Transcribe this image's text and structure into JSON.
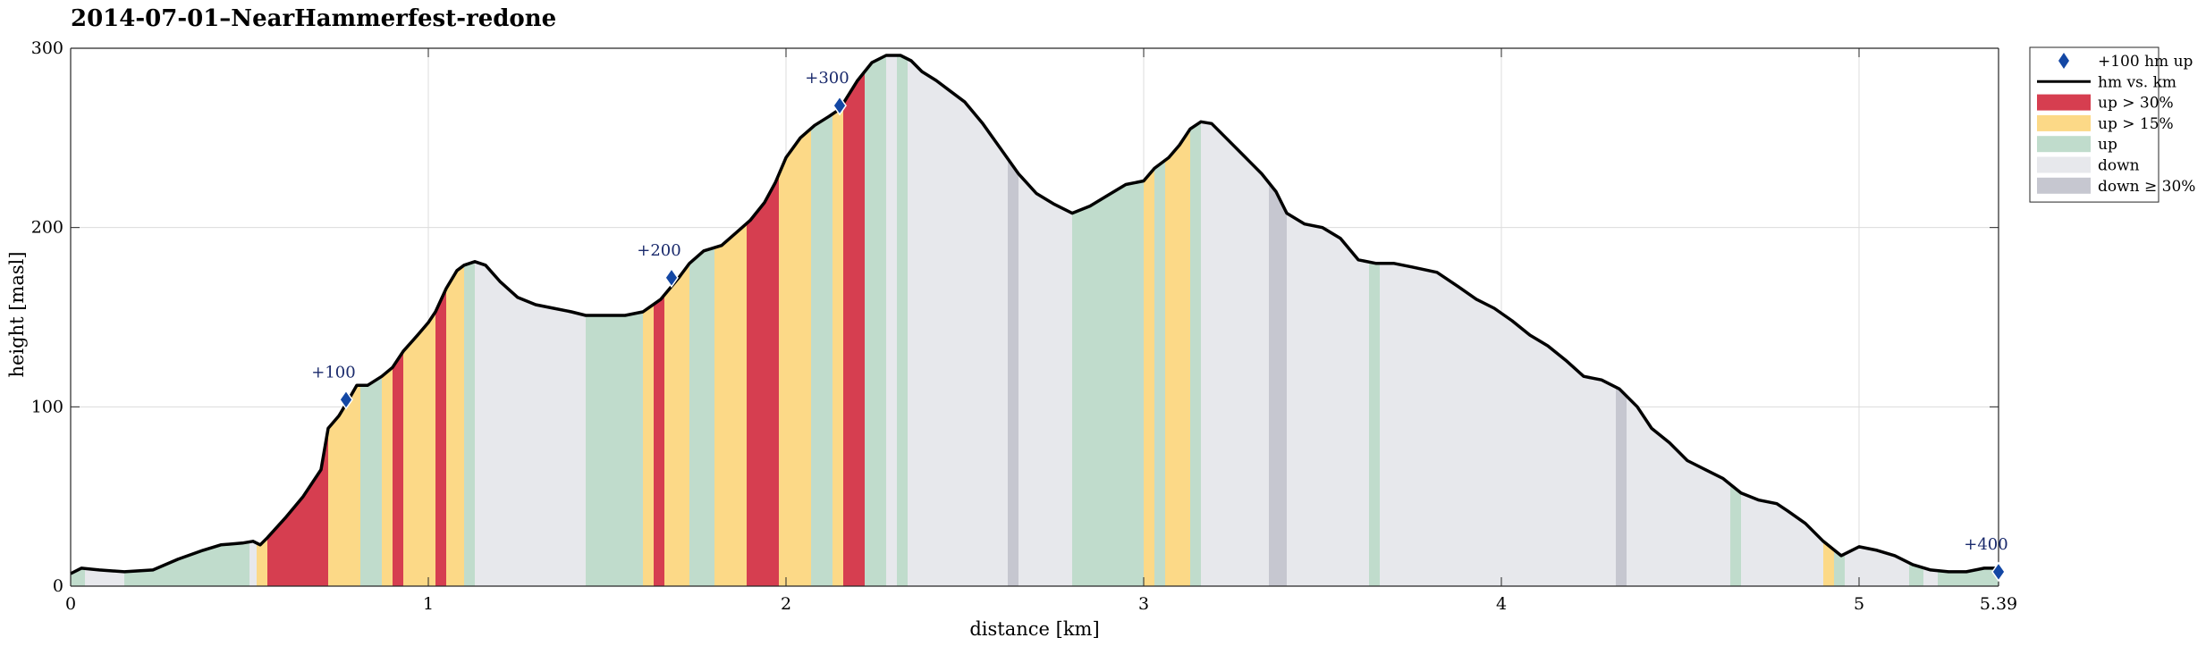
{
  "chart_data": {
    "type": "area",
    "title": "2014-07-01–NearHammerfest-redone",
    "xlabel": "distance [km]",
    "ylabel": "height [masl]",
    "xlim": [
      0,
      5.39
    ],
    "ylim": [
      0,
      300
    ],
    "xticks": [
      {
        "value": 0,
        "label": "0"
      },
      {
        "value": 1,
        "label": "1"
      },
      {
        "value": 2,
        "label": "2"
      },
      {
        "value": 3,
        "label": "3"
      },
      {
        "value": 4,
        "label": "4"
      },
      {
        "value": 5,
        "label": "5"
      },
      {
        "value": 5.39,
        "label": "5.39"
      }
    ],
    "yticks": [
      {
        "value": 0,
        "label": "0"
      },
      {
        "value": 100,
        "label": "100"
      },
      {
        "value": 200,
        "label": "200"
      },
      {
        "value": 300,
        "label": "300"
      }
    ],
    "grid": true,
    "legend_position": "outside-right-top",
    "colors": {
      "up30": "#d63e50",
      "up15": "#fcd987",
      "up": "#c0dccc",
      "down": "#e7e8ec",
      "down30": "#c6c7d0",
      "line": "#000000",
      "marker": "#1347a4",
      "marker_label": "#1a2a6c"
    },
    "legend": [
      {
        "key": "marker",
        "label": "+100 hm up"
      },
      {
        "key": "line",
        "label": "hm vs. km"
      },
      {
        "key": "up30",
        "label": "up > 30%"
      },
      {
        "key": "up15",
        "label": "up > 15%"
      },
      {
        "key": "up",
        "label": "up"
      },
      {
        "key": "down",
        "label": "down"
      },
      {
        "key": "down30",
        "label": "down ≥ 30%"
      }
    ],
    "profile": [
      [
        0,
        7
      ],
      [
        0.03,
        10
      ],
      [
        0.08,
        9
      ],
      [
        0.15,
        8
      ],
      [
        0.23,
        9
      ],
      [
        0.3,
        15
      ],
      [
        0.37,
        20
      ],
      [
        0.42,
        23
      ],
      [
        0.48,
        24
      ],
      [
        0.51,
        25
      ],
      [
        0.53,
        23
      ],
      [
        0.55,
        27
      ],
      [
        0.6,
        38
      ],
      [
        0.65,
        50
      ],
      [
        0.7,
        65
      ],
      [
        0.72,
        88
      ],
      [
        0.75,
        95
      ],
      [
        0.78,
        105
      ],
      [
        0.8,
        112
      ],
      [
        0.83,
        112
      ],
      [
        0.87,
        117
      ],
      [
        0.9,
        122
      ],
      [
        0.93,
        131
      ],
      [
        0.97,
        140
      ],
      [
        1.0,
        147
      ],
      [
        1.02,
        153
      ],
      [
        1.05,
        166
      ],
      [
        1.08,
        176
      ],
      [
        1.1,
        179
      ],
      [
        1.13,
        181
      ],
      [
        1.16,
        179
      ],
      [
        1.2,
        170
      ],
      [
        1.25,
        161
      ],
      [
        1.3,
        157
      ],
      [
        1.35,
        155
      ],
      [
        1.4,
        153
      ],
      [
        1.44,
        151
      ],
      [
        1.55,
        151
      ],
      [
        1.6,
        153
      ],
      [
        1.65,
        160
      ],
      [
        1.7,
        172
      ],
      [
        1.73,
        180
      ],
      [
        1.77,
        187
      ],
      [
        1.82,
        190
      ],
      [
        1.86,
        197
      ],
      [
        1.9,
        204
      ],
      [
        1.94,
        214
      ],
      [
        1.97,
        225
      ],
      [
        2.0,
        239
      ],
      [
        2.04,
        250
      ],
      [
        2.08,
        257
      ],
      [
        2.12,
        262
      ],
      [
        2.15,
        266
      ],
      [
        2.2,
        282
      ],
      [
        2.24,
        292
      ],
      [
        2.28,
        296
      ],
      [
        2.32,
        296
      ],
      [
        2.35,
        293
      ],
      [
        2.38,
        287
      ],
      [
        2.42,
        282
      ],
      [
        2.46,
        276
      ],
      [
        2.5,
        270
      ],
      [
        2.55,
        258
      ],
      [
        2.6,
        244
      ],
      [
        2.65,
        230
      ],
      [
        2.7,
        219
      ],
      [
        2.75,
        213
      ],
      [
        2.8,
        208
      ],
      [
        2.85,
        212
      ],
      [
        2.9,
        218
      ],
      [
        2.95,
        224
      ],
      [
        3.0,
        226
      ],
      [
        3.03,
        233
      ],
      [
        3.07,
        239
      ],
      [
        3.1,
        246
      ],
      [
        3.13,
        255
      ],
      [
        3.16,
        259
      ],
      [
        3.19,
        258
      ],
      [
        3.23,
        250
      ],
      [
        3.28,
        240
      ],
      [
        3.33,
        230
      ],
      [
        3.37,
        220
      ],
      [
        3.4,
        208
      ],
      [
        3.45,
        202
      ],
      [
        3.5,
        200
      ],
      [
        3.55,
        194
      ],
      [
        3.6,
        182
      ],
      [
        3.65,
        180
      ],
      [
        3.7,
        180
      ],
      [
        3.75,
        178
      ],
      [
        3.82,
        175
      ],
      [
        3.88,
        167
      ],
      [
        3.93,
        160
      ],
      [
        3.98,
        155
      ],
      [
        4.03,
        148
      ],
      [
        4.08,
        140
      ],
      [
        4.13,
        134
      ],
      [
        4.18,
        126
      ],
      [
        4.23,
        117
      ],
      [
        4.28,
        115
      ],
      [
        4.33,
        110
      ],
      [
        4.38,
        100
      ],
      [
        4.42,
        88
      ],
      [
        4.47,
        80
      ],
      [
        4.52,
        70
      ],
      [
        4.57,
        65
      ],
      [
        4.62,
        60
      ],
      [
        4.67,
        52
      ],
      [
        4.72,
        48
      ],
      [
        4.77,
        46
      ],
      [
        4.8,
        42
      ],
      [
        4.85,
        35
      ],
      [
        4.9,
        25
      ],
      [
        4.95,
        17
      ],
      [
        4.98,
        20
      ],
      [
        5.0,
        22
      ],
      [
        5.05,
        20
      ],
      [
        5.1,
        17
      ],
      [
        5.15,
        12
      ],
      [
        5.2,
        9
      ],
      [
        5.25,
        8
      ],
      [
        5.3,
        8
      ],
      [
        5.35,
        10
      ],
      [
        5.39,
        10
      ]
    ],
    "segments": [
      {
        "from": 0.0,
        "to": 0.04,
        "class": "up"
      },
      {
        "from": 0.04,
        "to": 0.15,
        "class": "down"
      },
      {
        "from": 0.15,
        "to": 0.5,
        "class": "up"
      },
      {
        "from": 0.5,
        "to": 0.52,
        "class": "down"
      },
      {
        "from": 0.52,
        "to": 0.55,
        "class": "up15"
      },
      {
        "from": 0.55,
        "to": 0.72,
        "class": "up30"
      },
      {
        "from": 0.72,
        "to": 0.81,
        "class": "up15"
      },
      {
        "from": 0.81,
        "to": 0.87,
        "class": "up"
      },
      {
        "from": 0.87,
        "to": 0.9,
        "class": "up15"
      },
      {
        "from": 0.9,
        "to": 0.93,
        "class": "up30"
      },
      {
        "from": 0.93,
        "to": 1.02,
        "class": "up15"
      },
      {
        "from": 1.02,
        "to": 1.05,
        "class": "up30"
      },
      {
        "from": 1.05,
        "to": 1.1,
        "class": "up15"
      },
      {
        "from": 1.1,
        "to": 1.13,
        "class": "up"
      },
      {
        "from": 1.13,
        "to": 1.44,
        "class": "down"
      },
      {
        "from": 1.44,
        "to": 1.6,
        "class": "up"
      },
      {
        "from": 1.6,
        "to": 1.63,
        "class": "up15"
      },
      {
        "from": 1.63,
        "to": 1.66,
        "class": "up30"
      },
      {
        "from": 1.66,
        "to": 1.73,
        "class": "up15"
      },
      {
        "from": 1.73,
        "to": 1.8,
        "class": "up"
      },
      {
        "from": 1.8,
        "to": 1.89,
        "class": "up15"
      },
      {
        "from": 1.89,
        "to": 1.98,
        "class": "up30"
      },
      {
        "from": 1.98,
        "to": 2.07,
        "class": "up15"
      },
      {
        "from": 2.07,
        "to": 2.13,
        "class": "up"
      },
      {
        "from": 2.13,
        "to": 2.16,
        "class": "up15"
      },
      {
        "from": 2.16,
        "to": 2.22,
        "class": "up30"
      },
      {
        "from": 2.22,
        "to": 2.28,
        "class": "up"
      },
      {
        "from": 2.28,
        "to": 2.31,
        "class": "down"
      },
      {
        "from": 2.31,
        "to": 2.34,
        "class": "up"
      },
      {
        "from": 2.34,
        "to": 2.62,
        "class": "down"
      },
      {
        "from": 2.62,
        "to": 2.65,
        "class": "down30"
      },
      {
        "from": 2.65,
        "to": 2.8,
        "class": "down"
      },
      {
        "from": 2.8,
        "to": 3.0,
        "class": "up"
      },
      {
        "from": 3.0,
        "to": 3.03,
        "class": "up15"
      },
      {
        "from": 3.03,
        "to": 3.06,
        "class": "up"
      },
      {
        "from": 3.06,
        "to": 3.13,
        "class": "up15"
      },
      {
        "from": 3.13,
        "to": 3.16,
        "class": "up"
      },
      {
        "from": 3.16,
        "to": 3.35,
        "class": "down"
      },
      {
        "from": 3.35,
        "to": 3.4,
        "class": "down30"
      },
      {
        "from": 3.4,
        "to": 3.63,
        "class": "down"
      },
      {
        "from": 3.63,
        "to": 3.66,
        "class": "up"
      },
      {
        "from": 3.66,
        "to": 4.32,
        "class": "down"
      },
      {
        "from": 4.32,
        "to": 4.35,
        "class": "down30"
      },
      {
        "from": 4.35,
        "to": 4.64,
        "class": "down"
      },
      {
        "from": 4.64,
        "to": 4.67,
        "class": "up"
      },
      {
        "from": 4.67,
        "to": 4.9,
        "class": "down"
      },
      {
        "from": 4.9,
        "to": 4.93,
        "class": "up15"
      },
      {
        "from": 4.93,
        "to": 4.96,
        "class": "up"
      },
      {
        "from": 4.96,
        "to": 5.14,
        "class": "down"
      },
      {
        "from": 5.14,
        "to": 5.18,
        "class": "up"
      },
      {
        "from": 5.18,
        "to": 5.22,
        "class": "down"
      },
      {
        "from": 5.22,
        "to": 5.39,
        "class": "up"
      }
    ],
    "markers": [
      {
        "x": 0.77,
        "y": 104,
        "label": "+100"
      },
      {
        "x": 1.68,
        "y": 172,
        "label": "+200"
      },
      {
        "x": 2.15,
        "y": 268,
        "label": "+300"
      },
      {
        "x": 5.39,
        "y": 8,
        "label": "+400"
      }
    ]
  }
}
